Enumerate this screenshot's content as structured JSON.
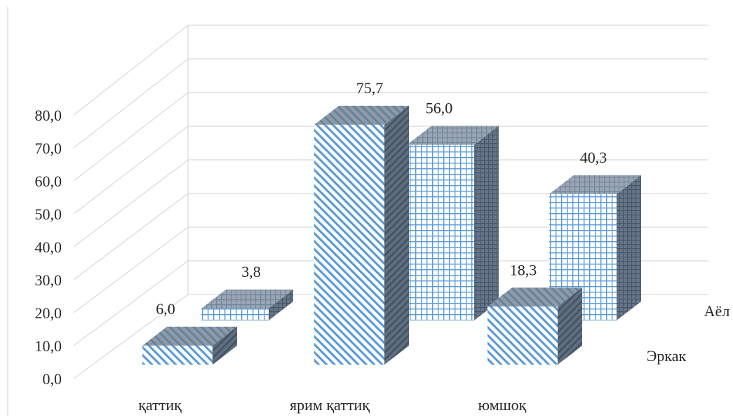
{
  "chart_data": {
    "type": "bar",
    "subtype": "3d-clustered-column",
    "title": "",
    "xlabel": "",
    "ylabel": "",
    "ylim": [
      0,
      80
    ],
    "yticks": [
      "0,0",
      "10,0",
      "20,0",
      "30,0",
      "40,0",
      "50,0",
      "60,0",
      "70,0",
      "80,0"
    ],
    "grid": true,
    "categories": [
      "қаттиқ",
      "ярим қаттиқ",
      "юмшоқ"
    ],
    "series": [
      {
        "name": "Эркак",
        "values": [
          6.0,
          75.7,
          18.3
        ],
        "labels": [
          "6,0",
          "75,7",
          "18,3"
        ],
        "pattern": "diagonal",
        "color": "#5B9BD5"
      },
      {
        "name": "Аёл",
        "values": [
          3.8,
          56.0,
          40.3
        ],
        "labels": [
          "3,8",
          "56,0",
          "40,3"
        ],
        "pattern": "grid",
        "color": "#5B9BD5"
      }
    ]
  }
}
